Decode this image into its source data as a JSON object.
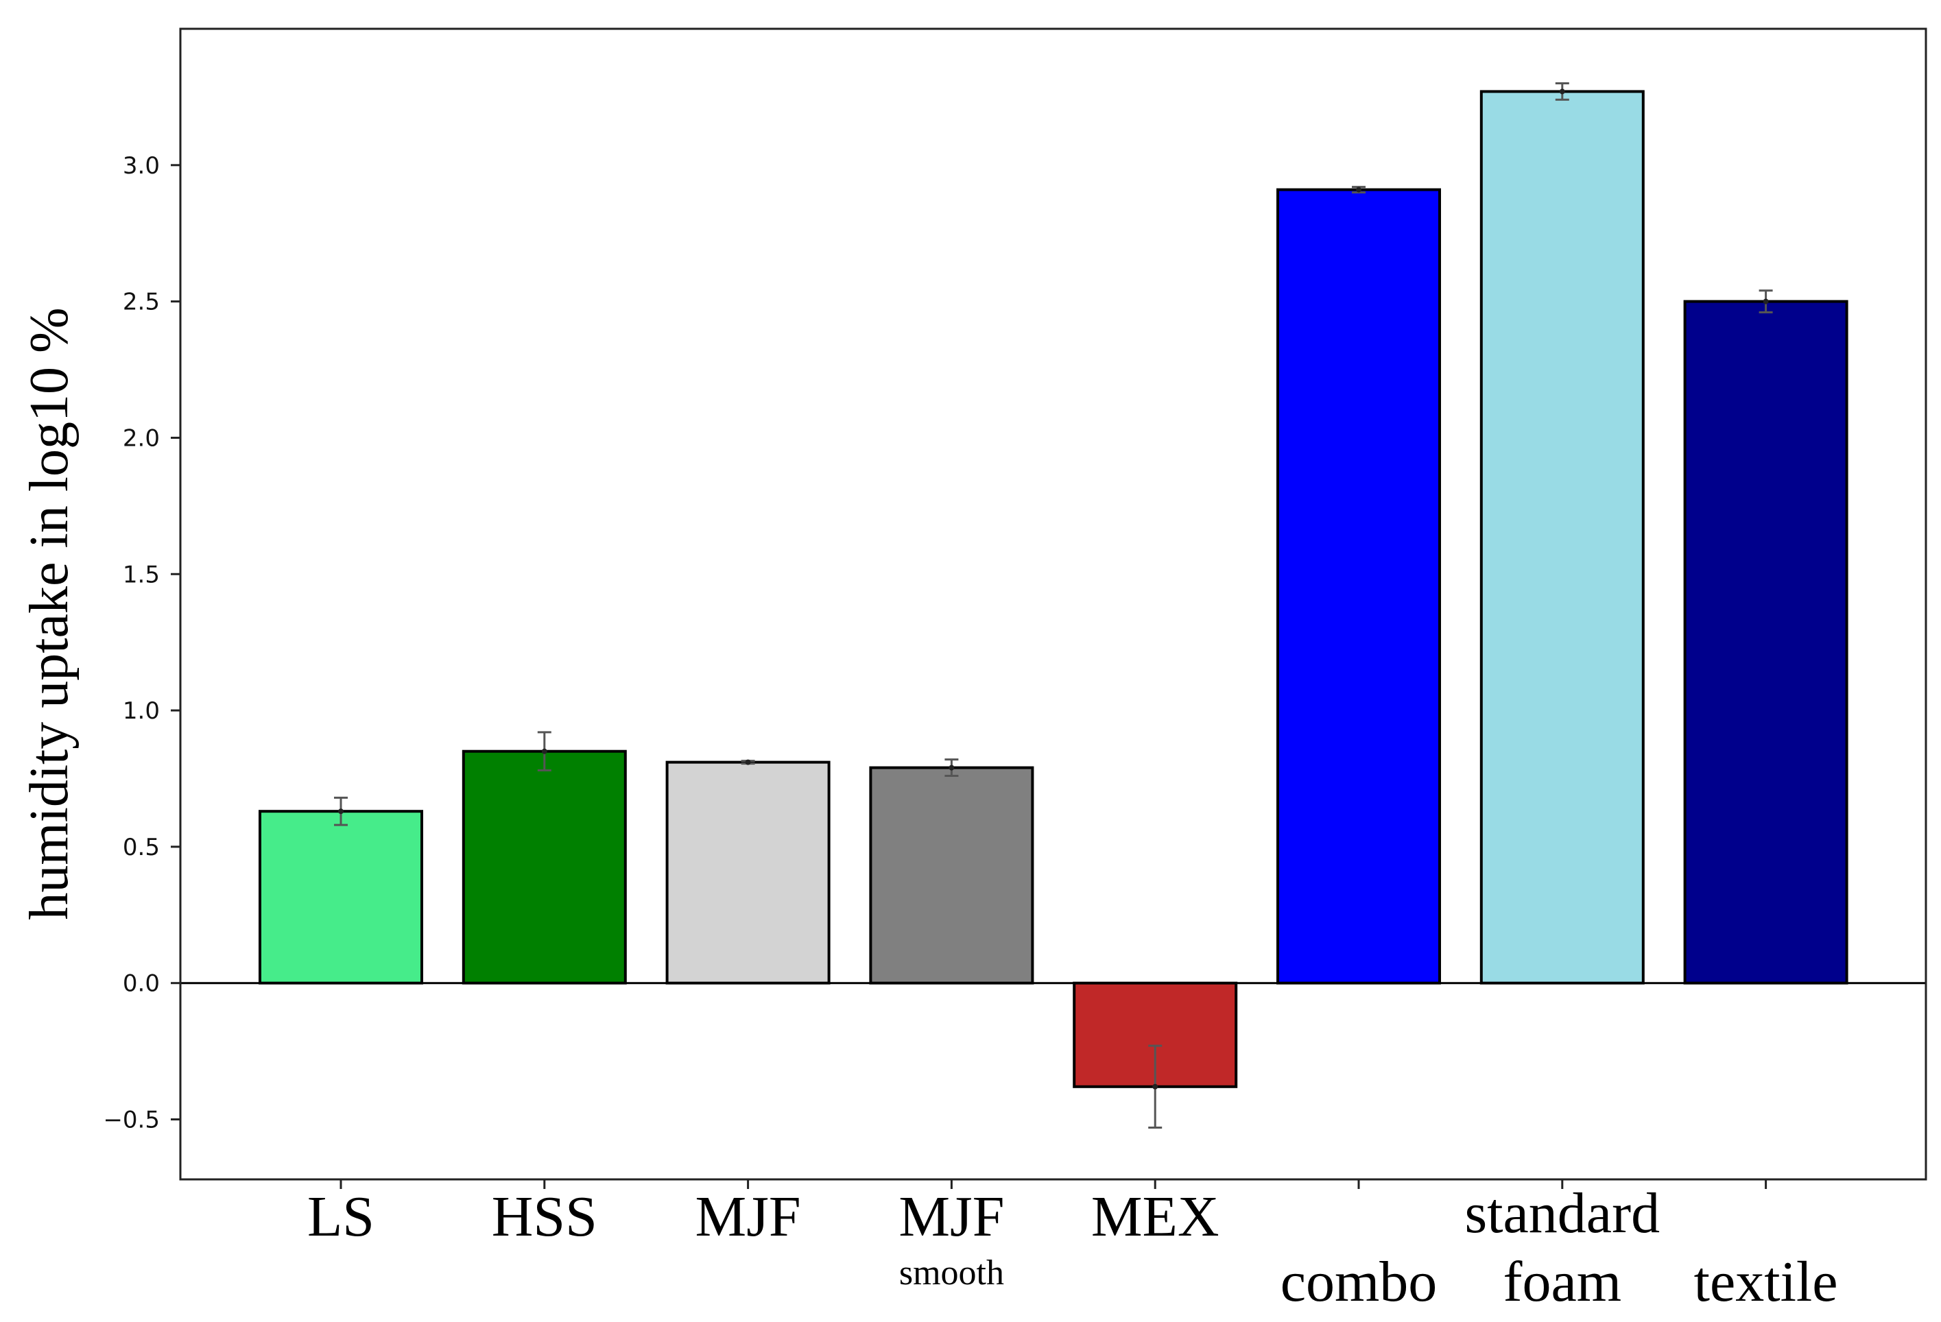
{
  "chart_data": {
    "type": "bar",
    "title": "",
    "xlabel": "",
    "ylabel": "humidity uptake in log10 %",
    "ylim": [
      -0.72,
      3.5
    ],
    "yticks": [
      -0.5,
      0.0,
      0.5,
      1.0,
      1.5,
      2.0,
      2.5,
      3.0
    ],
    "ytick_labels": [
      "−0.5",
      "0.0",
      "0.5",
      "1.0",
      "1.5",
      "2.0",
      "2.5",
      "3.0"
    ],
    "grid": false,
    "legend": "none",
    "bars": [
      {
        "label": "LS",
        "sublabel": "",
        "value": 0.63,
        "error": 0.05,
        "color": "#46EC8A"
      },
      {
        "label": "HSS",
        "sublabel": "",
        "value": 0.85,
        "error": 0.07,
        "color": "#008000"
      },
      {
        "label": "MJF",
        "sublabel": "",
        "value": 0.81,
        "error": 0.005,
        "color": "#D3D3D3"
      },
      {
        "label": "MJF",
        "sublabel": "smooth",
        "value": 0.79,
        "error": 0.03,
        "color": "#808080"
      },
      {
        "label": "MEX",
        "sublabel": "",
        "value": -0.38,
        "error": 0.15,
        "color": "#C02828"
      },
      {
        "label": "combo",
        "sublabel": "",
        "value": 2.91,
        "error": 0.01,
        "color": "#0000FF"
      },
      {
        "label": "standard",
        "sublabel": "foam",
        "value": 3.27,
        "error": 0.03,
        "color": "#99DBE5"
      },
      {
        "label": "textile",
        "sublabel": "",
        "value": 2.5,
        "error": 0.04,
        "color": "#00008C"
      }
    ]
  }
}
